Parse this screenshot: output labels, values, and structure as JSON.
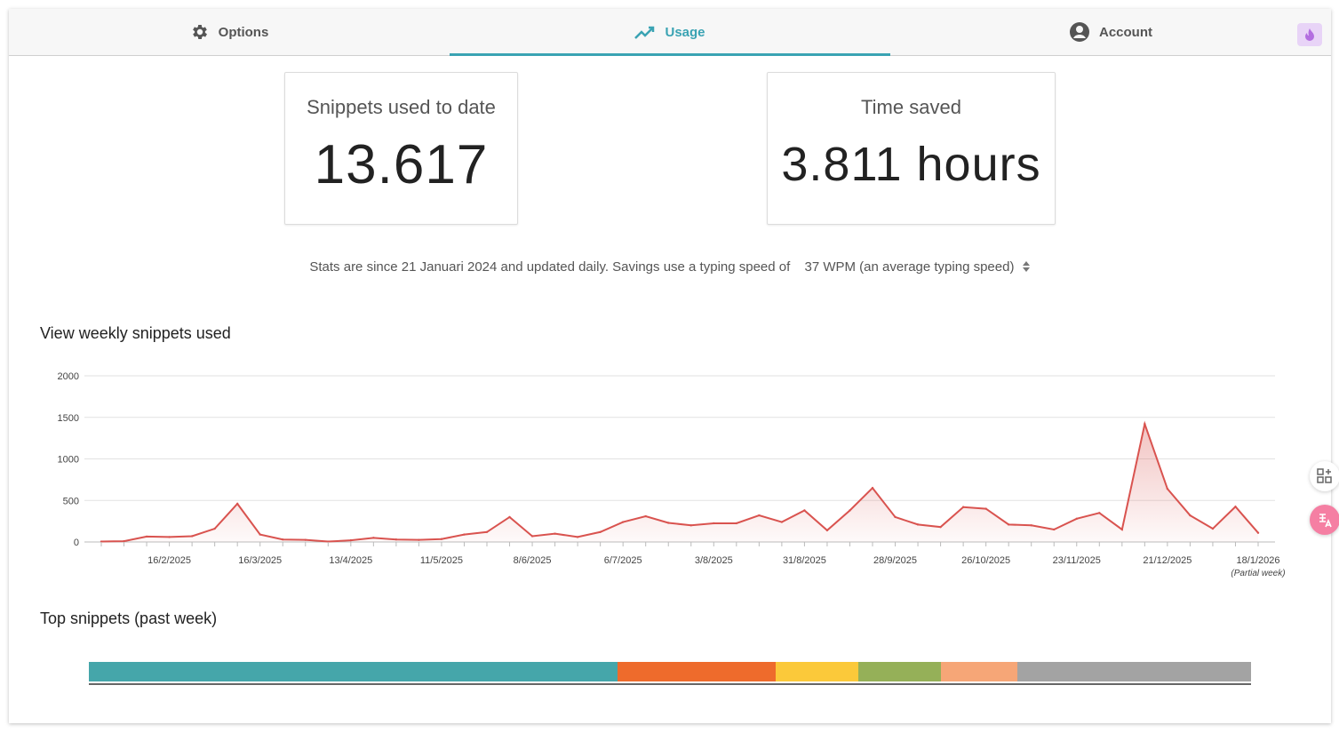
{
  "tabs": [
    {
      "label": "Options",
      "icon": "gear-icon"
    },
    {
      "label": "Usage",
      "icon": "trending-icon"
    },
    {
      "label": "Account",
      "icon": "account-icon"
    }
  ],
  "cards": {
    "snippets": {
      "title": "Snippets used to date",
      "value": "13.617"
    },
    "time": {
      "title": "Time saved",
      "value": "3.811 hours"
    }
  },
  "stats": {
    "text": "Stats are since 21 Januari 2024 and updated daily. Savings use a typing speed of",
    "wpm": "37 WPM (an average typing speed)"
  },
  "weekly_title": "View weekly snippets used",
  "top_title": "Top snippets (past week)",
  "partial_week": "(Partial week)",
  "colors": {
    "accent": "#3aa3b3",
    "line": "#d9534f"
  },
  "chart_data": {
    "type": "area",
    "title": "View weekly snippets used",
    "ylim": [
      0,
      2000
    ],
    "yticks": [
      0,
      500,
      1000,
      1500,
      2000
    ],
    "xtick_labels": [
      "16/2/2025",
      "16/3/2025",
      "13/4/2025",
      "11/5/2025",
      "8/6/2025",
      "6/7/2025",
      "3/8/2025",
      "31/8/2025",
      "28/9/2025",
      "26/10/2025",
      "23/11/2025",
      "21/12/2025",
      "18/1/2026"
    ],
    "values": [
      5,
      10,
      65,
      60,
      70,
      160,
      460,
      90,
      30,
      25,
      5,
      20,
      50,
      30,
      25,
      35,
      90,
      120,
      300,
      70,
      100,
      60,
      120,
      240,
      310,
      230,
      200,
      225,
      225,
      320,
      240,
      380,
      140,
      380,
      650,
      300,
      210,
      180,
      420,
      400,
      210,
      200,
      150,
      280,
      350,
      150,
      1420,
      640,
      320,
      160,
      425,
      110
    ]
  },
  "top_snippets": [
    {
      "share": 0.455,
      "color": "#45a6aa"
    },
    {
      "share": 0.136,
      "color": "#ee6b2c"
    },
    {
      "share": 0.071,
      "color": "#fbc93a"
    },
    {
      "share": 0.071,
      "color": "#95b058"
    },
    {
      "share": 0.066,
      "color": "#f6a677"
    },
    {
      "share": 0.201,
      "color": "#a3a3a3"
    }
  ]
}
